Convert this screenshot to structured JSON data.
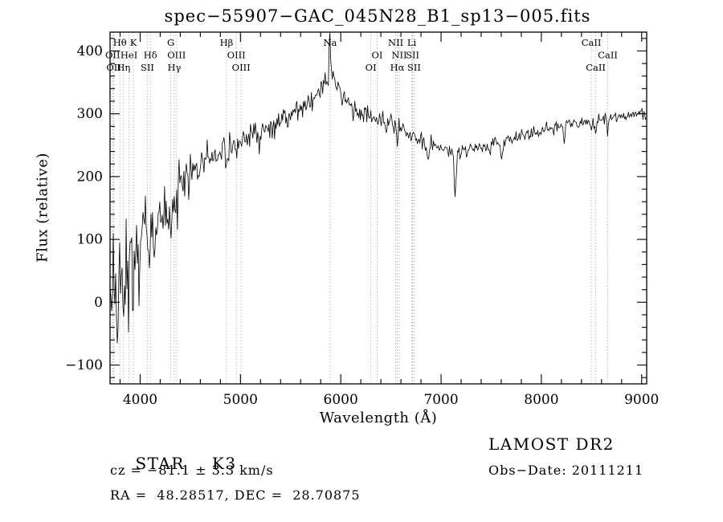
{
  "chart_data": {
    "type": "line",
    "title": "spec−55907−GAC_045N28_B1_sp13−005.fits",
    "xlabel": "Wavelength (Å)",
    "ylabel": "Flux (relative)",
    "xlim": [
      3700,
      9050
    ],
    "ylim": [
      -130,
      430
    ],
    "xticks": [
      4000,
      5000,
      6000,
      7000,
      8000,
      9000
    ],
    "yticks": [
      -100,
      0,
      100,
      200,
      300,
      400
    ],
    "grid": false,
    "line_color": "#000000",
    "marker_line_color": "#a3a3a3",
    "continuum_points": [
      [
        3700,
        -15
      ],
      [
        3730,
        35
      ],
      [
        3760,
        5
      ],
      [
        3790,
        45
      ],
      [
        3820,
        25
      ],
      [
        3850,
        55
      ],
      [
        3880,
        45
      ],
      [
        3910,
        65
      ],
      [
        3940,
        55
      ],
      [
        3970,
        75
      ],
      [
        4000,
        85
      ],
      [
        4030,
        105
      ],
      [
        4060,
        95
      ],
      [
        4100,
        105
      ],
      [
        4150,
        125
      ],
      [
        4200,
        138
      ],
      [
        4250,
        148
      ],
      [
        4300,
        150
      ],
      [
        4350,
        162
      ],
      [
        4400,
        182
      ],
      [
        4450,
        192
      ],
      [
        4500,
        200
      ],
      [
        4550,
        208
      ],
      [
        4600,
        216
      ],
      [
        4650,
        224
      ],
      [
        4700,
        230
      ],
      [
        4750,
        236
      ],
      [
        4800,
        240
      ],
      [
        4850,
        244
      ],
      [
        4900,
        247
      ],
      [
        4950,
        251
      ],
      [
        5000,
        255
      ],
      [
        5100,
        262
      ],
      [
        5200,
        270
      ],
      [
        5300,
        279
      ],
      [
        5400,
        287
      ],
      [
        5500,
        296
      ],
      [
        5600,
        307
      ],
      [
        5700,
        320
      ],
      [
        5800,
        338
      ],
      [
        5850,
        352
      ],
      [
        5900,
        364
      ],
      [
        5950,
        352
      ],
      [
        6000,
        334
      ],
      [
        6050,
        320
      ],
      [
        6100,
        310
      ],
      [
        6150,
        304
      ],
      [
        6200,
        299
      ],
      [
        6300,
        291
      ],
      [
        6400,
        287
      ],
      [
        6500,
        286
      ],
      [
        6600,
        277
      ],
      [
        6700,
        266
      ],
      [
        6800,
        256
      ],
      [
        6900,
        249
      ],
      [
        7000,
        244
      ],
      [
        7100,
        239
      ],
      [
        7200,
        238
      ],
      [
        7300,
        243
      ],
      [
        7400,
        246
      ],
      [
        7500,
        250
      ],
      [
        7600,
        255
      ],
      [
        7700,
        260
      ],
      [
        7800,
        265
      ],
      [
        7900,
        269
      ],
      [
        8000,
        273
      ],
      [
        8100,
        278
      ],
      [
        8200,
        282
      ],
      [
        8300,
        285
      ],
      [
        8400,
        287
      ],
      [
        8500,
        286
      ],
      [
        8600,
        290
      ],
      [
        8700,
        293
      ],
      [
        8800,
        296
      ],
      [
        8900,
        299
      ],
      [
        9000,
        301
      ],
      [
        9050,
        296
      ]
    ],
    "noise_sigma_points": [
      [
        3700,
        52
      ],
      [
        3800,
        46
      ],
      [
        3900,
        40
      ],
      [
        4000,
        34
      ],
      [
        4100,
        29
      ],
      [
        4200,
        25
      ],
      [
        4300,
        22
      ],
      [
        4400,
        18
      ],
      [
        4500,
        15
      ],
      [
        4600,
        13
      ],
      [
        4700,
        12
      ],
      [
        4800,
        11
      ],
      [
        5000,
        10
      ],
      [
        5300,
        9
      ],
      [
        5600,
        9
      ],
      [
        5900,
        9
      ],
      [
        6200,
        8
      ],
      [
        6500,
        8
      ],
      [
        6800,
        7
      ],
      [
        7100,
        7
      ],
      [
        7400,
        6
      ],
      [
        7700,
        5
      ],
      [
        8000,
        5
      ],
      [
        8400,
        4.5
      ],
      [
        8800,
        4.5
      ],
      [
        9050,
        5
      ]
    ],
    "features": [
      {
        "name": "Na D sky emission spike",
        "wavelength": 5892,
        "amplitude": 62,
        "sigma": 7
      },
      {
        "name": "CaII K absorption",
        "wavelength": 3934,
        "amplitude": -45,
        "sigma": 6
      },
      {
        "name": "CaII H absorption",
        "wavelength": 3968,
        "amplitude": -40,
        "sigma": 6
      },
      {
        "name": "G band absorption",
        "wavelength": 4305,
        "amplitude": -28,
        "sigma": 11
      },
      {
        "name": "H-beta absorption",
        "wavelength": 4861,
        "amplitude": -22,
        "sigma": 8
      },
      {
        "name": "Mg b absorption",
        "wavelength": 5175,
        "amplitude": -18,
        "sigma": 10
      },
      {
        "name": "H-alpha absorption",
        "wavelength": 6563,
        "amplitude": -28,
        "sigma": 8
      },
      {
        "name": "telluric B band absorption",
        "wavelength": 6868,
        "amplitude": -26,
        "sigma": 8
      },
      {
        "name": "deep absorption dip",
        "wavelength": 7140,
        "amplitude": -68,
        "sigma": 9
      },
      {
        "name": "telluric A band absorption",
        "wavelength": 7604,
        "amplitude": -30,
        "sigma": 9
      },
      {
        "name": "absorption dip",
        "wavelength": 8228,
        "amplitude": -34,
        "sigma": 6
      },
      {
        "name": "CaII triplet absorption",
        "wavelength": 8498,
        "amplitude": -20,
        "sigma": 5
      },
      {
        "name": "CaII triplet absorption",
        "wavelength": 8542,
        "amplitude": -26,
        "sigma": 5
      },
      {
        "name": "CaII triplet absorption",
        "wavelength": 8662,
        "amplitude": -24,
        "sigma": 5
      }
    ],
    "spectral_line_markers": [
      {
        "wavelength": 3726,
        "label": "OII",
        "row": 2
      },
      {
        "wavelength": 3737,
        "label": "OII",
        "row": 3
      },
      {
        "wavelength": 3798,
        "label": "Hθ",
        "row": 1
      },
      {
        "wavelength": 3835,
        "label": "Hη",
        "row": 3
      },
      {
        "wavelength": 3889,
        "label": "HeI",
        "row": 2
      },
      {
        "wavelength": 3933,
        "label": "K",
        "row": 1
      },
      {
        "wavelength": 4072,
        "label": "SII",
        "row": 3
      },
      {
        "wavelength": 4102,
        "label": "Hδ",
        "row": 2
      },
      {
        "wavelength": 4305,
        "label": "G",
        "row": 1
      },
      {
        "wavelength": 4340,
        "label": "Hγ",
        "row": 3
      },
      {
        "wavelength": 4363,
        "label": "OIII",
        "row": 2
      },
      {
        "wavelength": 4861,
        "label": "Hβ",
        "row": 1
      },
      {
        "wavelength": 4959,
        "label": "OIII",
        "row": 2
      },
      {
        "wavelength": 5007,
        "label": "OIII",
        "row": 3
      },
      {
        "wavelength": 5894,
        "label": "Na",
        "row": 1
      },
      {
        "wavelength": 6300,
        "label": "OI",
        "row": 3
      },
      {
        "wavelength": 6363,
        "label": "OI",
        "row": 2
      },
      {
        "wavelength": 6548,
        "label": "NII",
        "row": 1
      },
      {
        "wavelength": 6563,
        "label": "Hα",
        "row": 3
      },
      {
        "wavelength": 6583,
        "label": "NII",
        "row": 2
      },
      {
        "wavelength": 6708,
        "label": "Li",
        "row": 1
      },
      {
        "wavelength": 6716,
        "label": "SII",
        "row": 2
      },
      {
        "wavelength": 6731,
        "label": "SII",
        "row": 3
      },
      {
        "wavelength": 8498,
        "label": "CaII",
        "row": 1
      },
      {
        "wavelength": 8542,
        "label": "CaII",
        "row": 3
      },
      {
        "wavelength": 8662,
        "label": "CaII",
        "row": 2
      }
    ]
  },
  "footer": {
    "object_type": "STAR",
    "subclass": "K3",
    "survey": "LAMOST DR2",
    "cz": "cz = −81.1 ± 3.3 km/s",
    "obs_date": "Obs−Date: 20111211",
    "ra_dec": "RA =  48.28517, DEC =  28.70875"
  }
}
